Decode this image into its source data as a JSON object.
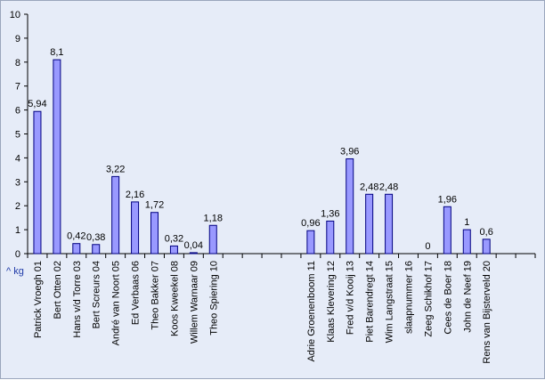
{
  "chart_data": {
    "type": "bar",
    "categories": [
      "Patrick Vroegh 01",
      "Bert Otten 02",
      "Hans v/d Torre 03",
      "Bert Screurs 04",
      "André van Noort 05",
      "Ed Verbaas 06",
      "Theo Bakker 07",
      "Koos Kweekel 08",
      "Willem Warnaar 09",
      "Theo Spiering 10",
      "",
      "",
      "",
      "",
      "Adrie Groenenboom 11",
      "Klaas Klevering 12",
      "Fred v/d Kooij 13",
      "Piet Barendregt 14",
      "Wim Langstraat 15",
      "slaapnummer 16",
      "Zeeg Schikhof 17",
      "Cees de Boer 18",
      "John de Neef 19",
      "Rens van Bijsterveld 20",
      "",
      ""
    ],
    "values": [
      5.94,
      8.1,
      0.42,
      0.38,
      3.22,
      2.16,
      1.72,
      0.32,
      0.04,
      1.18,
      null,
      null,
      null,
      null,
      0.96,
      1.36,
      3.96,
      2.48,
      2.48,
      null,
      0,
      1.96,
      1,
      0.6,
      null,
      null
    ],
    "data_labels": [
      "5,94",
      "8,1",
      "0,42",
      "0,38",
      "3,22",
      "2,16",
      "1,72",
      "0,32",
      "0,04",
      "1,18",
      "",
      "",
      "",
      "",
      "0,96",
      "1,36",
      "3,96",
      "2,48",
      "2,48",
      "",
      "0",
      "1,96",
      "1",
      "0,6",
      "",
      ""
    ],
    "y_ticks": [
      "0",
      "1",
      "2",
      "3",
      "4",
      "5",
      "6",
      "7",
      "8",
      "9",
      "10"
    ],
    "ylim": [
      0,
      10
    ],
    "unit_label": "^ kg",
    "grid": false,
    "colors": {
      "bar_fill": "#9999ff",
      "bar_stroke": "#000080",
      "background": "#e6ecf8"
    }
  }
}
